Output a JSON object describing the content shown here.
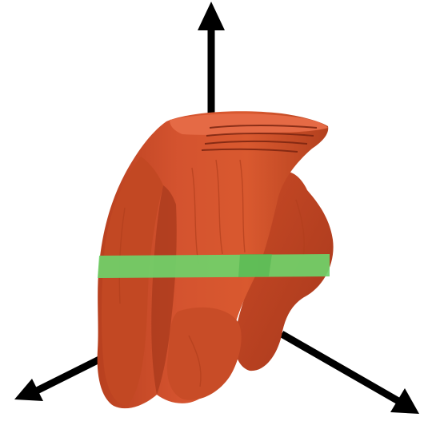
{
  "scene": {
    "background_color": "#ffffff",
    "axis_color": "#000000",
    "organ_color": "#d4532f",
    "organ_shadow_color": "#a8391c",
    "organ_highlight_color": "#e56a45",
    "slice_band_color": "#6fd36a",
    "objects": [
      "vertical-axis-arrow",
      "left-axis-arrow",
      "right-axis-arrow",
      "organ-surface-render",
      "slice-plane-band"
    ]
  }
}
